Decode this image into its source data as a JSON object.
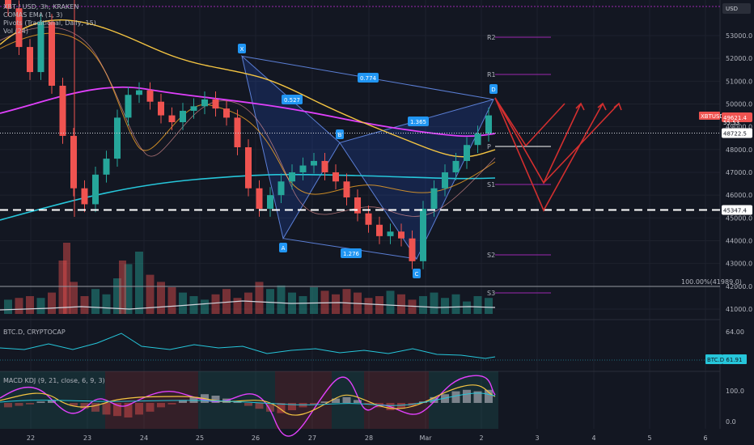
{
  "header": {
    "symbol_line": "XBT / USD, 3h, KRAKEN",
    "indicator_1": "COMAS EMA (1, 3)",
    "indicator_2": "Pivots (Traditional, Daily, 15)",
    "indicator_3": "Vol (24)"
  },
  "currency_badge": "USD",
  "price_badges": {
    "symbol": "XBTUSD",
    "price": "49621.4",
    "sub": "55:53",
    "level_1": "48722.5",
    "level_2": "45347.4"
  },
  "volume_ref_label": "100.00%(41989.0)",
  "btcd_pane": {
    "title": "BTC.D, CRYPTOCAP",
    "badge": "BTC.D  61.91",
    "tick": "64.00"
  },
  "macd_pane": {
    "title": "MACD KDJ (9, 21, close, 6, 9, 3)",
    "ticks": [
      "100.0",
      "0.0"
    ]
  },
  "pattern": {
    "points": [
      "X",
      "A",
      "B",
      "C",
      "D"
    ],
    "ratios": [
      "0.774",
      "0.527",
      "1.365",
      "1.276"
    ]
  },
  "pivot_labels": [
    "R2",
    "R1",
    "P",
    "S1",
    "S2",
    "S3"
  ],
  "colors": {
    "up": "#26a69a",
    "down": "#ef5350",
    "ema_pink": "#e040fb",
    "ema_cyan": "#26c6da",
    "ema_yellow": "#f5c542",
    "projection": "#d32f2f"
  },
  "chart_data": {
    "type": "candlestick",
    "symbol": "XBT / USD",
    "timeframe": "3h",
    "x_ticks": [
      "22",
      "23",
      "24",
      "25",
      "26",
      "27",
      "28",
      "Mar",
      "2",
      "3",
      "4",
      "5",
      "6"
    ],
    "y_ticks": [
      53000,
      52000,
      51000,
      50000,
      49000,
      48000,
      47000,
      46000,
      45000,
      44000,
      43000,
      42000,
      41000
    ],
    "y_tick_labels": [
      "53000.0",
      "52000.0",
      "51000.0",
      "50000.0",
      "49000.0",
      "48000.0",
      "47000.0",
      "46000.0",
      "45000.0",
      "44000.0",
      "43000.0",
      "42000.0",
      "41000.0"
    ],
    "ylim": [
      40500,
      54500
    ],
    "close_approx": [
      54200,
      52500,
      51400,
      53600,
      50800,
      48600,
      46300,
      45600,
      46900,
      47600,
      49400,
      50400,
      50600,
      50100,
      49500,
      49200,
      49700,
      49900,
      50200,
      49800,
      49400,
      48100,
      46300,
      45400,
      46000,
      46600,
      47000,
      47300,
      47500,
      47000,
      46600,
      45900,
      45200,
      44700,
      44200,
      44400,
      44100,
      43100,
      45400,
      46300,
      47000,
      47500,
      48200,
      48700,
      49500
    ],
    "harmonic_points_price": {
      "X": 52100,
      "A": 44100,
      "B": 48300,
      "C": 43200,
      "D": 50200
    },
    "horizontal_levels": [
      48722.5,
      45347.4
    ]
  }
}
